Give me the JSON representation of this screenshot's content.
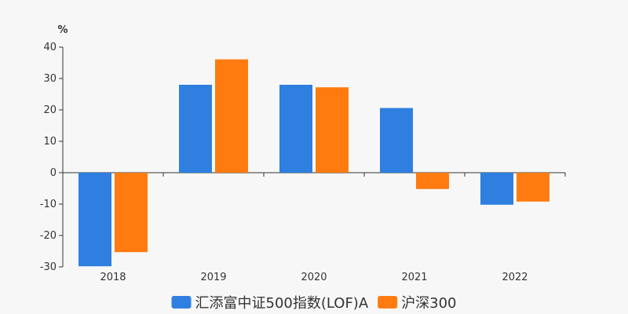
{
  "chart_data": {
    "type": "bar",
    "unit": "%",
    "categories": [
      "2018",
      "2019",
      "2020",
      "2021",
      "2022"
    ],
    "series": [
      {
        "name": "汇添富中证500指数(LOF)A",
        "color": "#2e7fe0",
        "values": [
          -29.8,
          28.0,
          28.0,
          20.6,
          -10.2
        ]
      },
      {
        "name": "沪深300",
        "color": "#ff7b0f",
        "values": [
          -25.3,
          36.1,
          27.2,
          -5.2,
          -9.2
        ]
      }
    ],
    "ylim": [
      -30,
      40
    ],
    "yticks": [
      40,
      30,
      20,
      10,
      0,
      -10,
      -20,
      -30
    ],
    "grid": false,
    "legend_position": "bottom"
  }
}
